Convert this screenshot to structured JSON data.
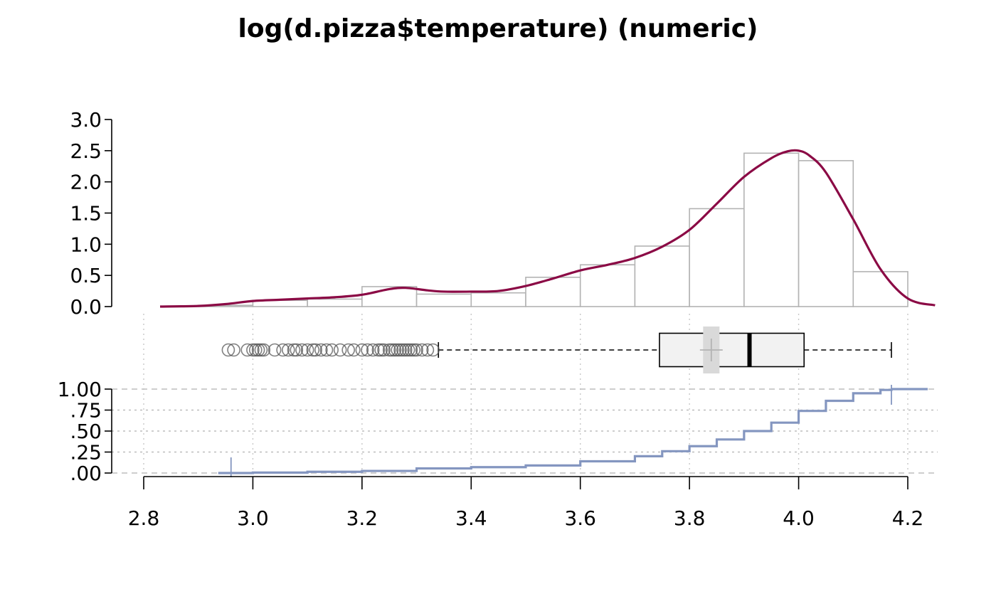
{
  "chart_data": {
    "type": "histogram-density-boxplot-ecdf",
    "title": "log(d.pizza$temperature) (numeric)",
    "x_axis": {
      "range": [
        2.8,
        4.2
      ],
      "ticks": [
        2.8,
        3.0,
        3.2,
        3.4,
        3.6,
        3.8,
        4.0,
        4.2
      ],
      "tick_labels": [
        "2.8",
        "3.0",
        "3.2",
        "3.4",
        "3.6",
        "3.8",
        "4.0",
        "4.2"
      ],
      "grid": true
    },
    "histogram": {
      "y_range": [
        0,
        3.0
      ],
      "y_ticks": [
        0.0,
        0.5,
        1.0,
        1.5,
        2.0,
        2.5,
        3.0
      ],
      "y_tick_labels": [
        "0.0",
        "0.5",
        "1.0",
        "1.5",
        "2.0",
        "2.5",
        "3.0"
      ],
      "bins": [
        {
          "x0": 2.9,
          "x1": 3.0,
          "density": 0.02
        },
        {
          "x0": 3.0,
          "x1": 3.1,
          "density": 0.1
        },
        {
          "x0": 3.1,
          "x1": 3.2,
          "density": 0.12
        },
        {
          "x0": 3.2,
          "x1": 3.3,
          "density": 0.32
        },
        {
          "x0": 3.3,
          "x1": 3.4,
          "density": 0.2
        },
        {
          "x0": 3.4,
          "x1": 3.5,
          "density": 0.22
        },
        {
          "x0": 3.5,
          "x1": 3.6,
          "density": 0.47
        },
        {
          "x0": 3.6,
          "x1": 3.7,
          "density": 0.67
        },
        {
          "x0": 3.7,
          "x1": 3.8,
          "density": 0.97
        },
        {
          "x0": 3.8,
          "x1": 3.9,
          "density": 1.57
        },
        {
          "x0": 3.9,
          "x1": 4.0,
          "density": 2.46
        },
        {
          "x0": 4.0,
          "x1": 4.1,
          "density": 2.34
        },
        {
          "x0": 4.1,
          "x1": 4.2,
          "density": 0.56
        }
      ],
      "density_curve": {
        "x": [
          2.83,
          2.9,
          2.95,
          3.0,
          3.05,
          3.1,
          3.15,
          3.2,
          3.25,
          3.28,
          3.32,
          3.35,
          3.4,
          3.45,
          3.5,
          3.55,
          3.6,
          3.65,
          3.7,
          3.75,
          3.8,
          3.85,
          3.9,
          3.95,
          3.98,
          4.0,
          4.02,
          4.05,
          4.1,
          4.15,
          4.2,
          4.25
        ],
        "y": [
          0.0,
          0.01,
          0.04,
          0.09,
          0.11,
          0.13,
          0.15,
          0.19,
          0.28,
          0.3,
          0.26,
          0.24,
          0.24,
          0.25,
          0.33,
          0.45,
          0.58,
          0.67,
          0.78,
          0.96,
          1.23,
          1.65,
          2.08,
          2.38,
          2.49,
          2.5,
          2.42,
          2.15,
          1.4,
          0.6,
          0.13,
          0.02
        ]
      }
    },
    "boxplot": {
      "lower_whisker": 3.34,
      "q1": 3.745,
      "median": 3.91,
      "q3": 4.01,
      "upper_whisker": 4.17,
      "mean": 3.84,
      "mean_ci": [
        3.825,
        3.855
      ],
      "outliers": [
        2.955,
        2.965,
        2.99,
        3.0,
        3.005,
        3.01,
        3.015,
        3.02,
        3.04,
        3.055,
        3.065,
        3.075,
        3.08,
        3.09,
        3.1,
        3.11,
        3.115,
        3.125,
        3.135,
        3.145,
        3.16,
        3.175,
        3.185,
        3.2,
        3.21,
        3.22,
        3.23,
        3.235,
        3.24,
        3.25,
        3.255,
        3.26,
        3.265,
        3.27,
        3.275,
        3.28,
        3.285,
        3.29,
        3.295,
        3.3,
        3.31,
        3.32,
        3.33
      ]
    },
    "ecdf": {
      "y_range": [
        0,
        1
      ],
      "y_ticks": [
        0.0,
        0.25,
        0.5,
        0.75,
        1.0
      ],
      "y_tick_labels": [
        ".00",
        ".25",
        ".50",
        ".75",
        "1.00"
      ],
      "min": 2.96,
      "max": 4.17,
      "x": [
        2.96,
        3.0,
        3.1,
        3.2,
        3.3,
        3.4,
        3.5,
        3.6,
        3.7,
        3.75,
        3.8,
        3.85,
        3.9,
        3.95,
        4.0,
        4.05,
        4.1,
        4.15,
        4.17
      ],
      "y": [
        0.0,
        0.005,
        0.015,
        0.025,
        0.055,
        0.07,
        0.09,
        0.14,
        0.2,
        0.26,
        0.32,
        0.4,
        0.5,
        0.6,
        0.74,
        0.86,
        0.95,
        0.99,
        1.0
      ]
    }
  }
}
